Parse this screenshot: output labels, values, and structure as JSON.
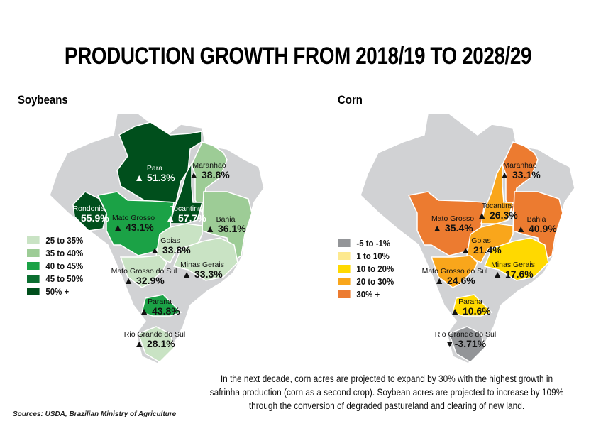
{
  "title": "PRODUCTION GROWTH FROM 2018/19 TO 2028/29",
  "maps": [
    {
      "name": "Soybeans",
      "legend": [
        {
          "label": "25 to 35%",
          "color": "#c9e3c4"
        },
        {
          "label": "35 to 40%",
          "color": "#9dcc96"
        },
        {
          "label": "40 to 45%",
          "color": "#1ba246"
        },
        {
          "label": "45 to 50%",
          "color": "#0b6e30"
        },
        {
          "label": "50% +",
          "color": "#004f1c"
        }
      ],
      "states": [
        {
          "state": "Para",
          "value": "51.3%",
          "direction": "up",
          "color": "#004f1c"
        },
        {
          "state": "Maranhao",
          "value": "38.8%",
          "direction": "up",
          "color": "#9dcc96"
        },
        {
          "state": "Rondonia",
          "value": "55.9%",
          "direction": "up",
          "color": "#004f1c"
        },
        {
          "state": "Mato Grosso",
          "value": "43.1%",
          "direction": "up",
          "color": "#1ba246"
        },
        {
          "state": "Tocantins",
          "value": "57.7%",
          "direction": "up",
          "color": "#004f1c"
        },
        {
          "state": "Bahia",
          "value": "36.1%",
          "direction": "up",
          "color": "#9dcc96"
        },
        {
          "state": "Goias",
          "value": "33.8%",
          "direction": "up",
          "color": "#c9e3c4"
        },
        {
          "state": "Minas Gerais",
          "value": "33.3%",
          "direction": "up",
          "color": "#c9e3c4"
        },
        {
          "state": "Mato Grosso do Sul",
          "value": "32.9%",
          "direction": "up",
          "color": "#c9e3c4"
        },
        {
          "state": "Parana",
          "value": "43.8%",
          "direction": "up",
          "color": "#1ba246"
        },
        {
          "state": "Rio Grande do Sul",
          "value": "28.1%",
          "direction": "up",
          "color": "#c9e3c4"
        }
      ]
    },
    {
      "name": "Corn",
      "legend": [
        {
          "label": "-5 to -1%",
          "color": "#939598"
        },
        {
          "label": "1 to 10%",
          "color": "#fde98f"
        },
        {
          "label": "10 to 20%",
          "color": "#ffd900"
        },
        {
          "label": "20 to 30%",
          "color": "#f9a61b"
        },
        {
          "label": "30% +",
          "color": "#ec7b30"
        }
      ],
      "states": [
        {
          "state": "Maranhao",
          "value": "33.1%",
          "direction": "up",
          "color": "#ec7b30"
        },
        {
          "state": "Mato Grosso",
          "value": "35.4%",
          "direction": "up",
          "color": "#ec7b30"
        },
        {
          "state": "Tocantins",
          "value": "26.3%",
          "direction": "up",
          "color": "#f9a61b"
        },
        {
          "state": "Bahia",
          "value": "40.9%",
          "direction": "up",
          "color": "#ec7b30"
        },
        {
          "state": "Goias",
          "value": "21.4%",
          "direction": "up",
          "color": "#f9a61b"
        },
        {
          "state": "Minas Gerais",
          "value": "17.6%",
          "direction": "up",
          "color": "#ffd900"
        },
        {
          "state": "Mato Grosso do Sul",
          "value": "24.6%",
          "direction": "up",
          "color": "#f9a61b"
        },
        {
          "state": "Parana",
          "value": "10.6%",
          "direction": "up",
          "color": "#ffd900"
        },
        {
          "state": "Rio Grande do Sul",
          "value": "-3.71%",
          "direction": "down",
          "color": "#939598"
        }
      ]
    }
  ],
  "base_color": "#d1d2d4",
  "note": "In the next decade, corn acres are projected to expand by 30% with the highest growth in safrinha production (corn as a second crop). Soybean acres are projected to increase by 109% through the conversion of degraded pastureland and clearing of new land.",
  "sources": "Sources: USDA, Brazilian Ministry of Agriculture"
}
